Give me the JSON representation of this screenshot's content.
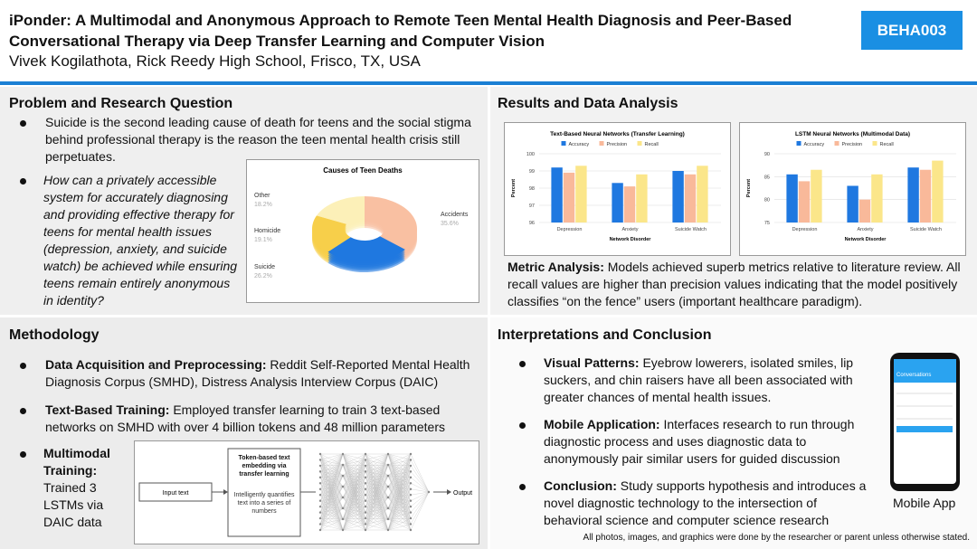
{
  "header": {
    "title": "iPonder: A Multimodal and Anonymous Approach to Remote Teen Mental Health Diagnosis and Peer-Based Conversational Therapy via Deep Transfer Learning and Computer Vision",
    "authors": "Vivek Kogilathota, Rick Reedy High School, Frisco, TX, USA",
    "badge": "BEHA003"
  },
  "problem": {
    "heading": "Problem and Research Question",
    "bullets": [
      "Suicide is the second leading cause of death for teens and the social stigma behind professional therapy is the reason the teen mental health crisis still perpetuates.",
      "How can a privately accessible system for accurately diagnosing and providing effective therapy for teens for mental health issues (depression, anxiety, and suicide watch) be achieved while ensuring teens remain entirely anonymous in identity?"
    ],
    "chart": {
      "type": "pie",
      "title": "Causes of Teen Deaths",
      "categories": [
        "Accidents",
        "Suicide",
        "Homicide",
        "Other"
      ],
      "values": [
        35.6,
        26.2,
        19.1,
        18.2
      ],
      "value_labels": [
        "35.6%",
        "26.2%",
        "19.1%",
        "18.2%"
      ],
      "colors": [
        "#f9c0a2",
        "#1f78e0",
        "#f7cf4a",
        "#fcf0b8"
      ]
    }
  },
  "results": {
    "heading": "Results and Data Analysis",
    "charts": [
      {
        "type": "bar",
        "title": "Text-Based Neural Networks (Transfer Learning)",
        "x_label": "Network Disorder",
        "y_label": "Percent",
        "categories": [
          "Depression",
          "Anxiety",
          "Suicide Watch"
        ],
        "series": [
          {
            "name": "Accuracy",
            "color": "#1f78e0",
            "values": [
              99.2,
              98.3,
              99.0
            ]
          },
          {
            "name": "Precision",
            "color": "#f9b99a",
            "values": [
              98.9,
              98.1,
              98.8
            ]
          },
          {
            "name": "Recall",
            "color": "#fbe68a",
            "values": [
              99.3,
              98.8,
              99.3
            ]
          }
        ],
        "ylim": [
          96,
          100
        ],
        "yticks": [
          96,
          97,
          98,
          99,
          100
        ],
        "grid": true
      },
      {
        "type": "bar",
        "title": "LSTM Neural Networks (Multimodal Data)",
        "x_label": "Network Disorder",
        "y_label": "Percent",
        "categories": [
          "Depression",
          "Anxiety",
          "Suicide Watch"
        ],
        "series": [
          {
            "name": "Accuracy",
            "color": "#1f78e0",
            "values": [
              85.5,
              83.0,
              87.0
            ]
          },
          {
            "name": "Precision",
            "color": "#f9b99a",
            "values": [
              84.0,
              80.0,
              86.5
            ]
          },
          {
            "name": "Recall",
            "color": "#fbe68a",
            "values": [
              86.5,
              85.5,
              88.5
            ]
          }
        ],
        "ylim": [
          75,
          90
        ],
        "yticks": [
          75,
          80,
          85,
          90
        ],
        "grid": true
      }
    ],
    "metric_label": "Metric Analysis:",
    "metric_text": "Models achieved superb metrics relative to literature review. All recall values are higher than precision values indicating that the model positively classifies “on the fence” users (important healthcare paradigm)."
  },
  "methodology": {
    "heading": "Methodology",
    "bullets": [
      {
        "label": "Data Acquisition and Preprocessing:",
        "text": "Reddit Self-Reported Mental Health Diagnosis Corpus (SMHD), Distress Analysis Interview Corpus (DAIC)"
      },
      {
        "label": "Text-Based Training:",
        "text": "Employed transfer learning to train 3 text-based networks on SMHD with over 4 billion tokens and 48 million parameters"
      },
      {
        "label": "Multimodal Training:",
        "text": "Trained 3 LSTMs via DAIC data"
      }
    ],
    "diagram": {
      "input": "Input text",
      "embedding": "Token-based text embedding via transfer learning",
      "embedding_note": "Intelligently quantifies text into a series of numbers",
      "output": "Output"
    }
  },
  "interpretations": {
    "heading": "Interpretations and Conclusion",
    "bullets": [
      {
        "label": "Visual Patterns:",
        "text": "Eyebrow lowerers, isolated smiles, lip suckers, and chin raisers have all been associated with greater chances of mental health issues."
      },
      {
        "label": "Mobile Application:",
        "text": "Interfaces research to run through diagnostic process and uses diagnostic data to anonymously pair similar users for guided discussion"
      },
      {
        "label": "Conclusion:",
        "text": "Study supports hypothesis and introduces a novel diagnostic technology to the intersection of behavioral science and computer science research"
      }
    ],
    "app_screen_title": "Conversations",
    "app_caption": "Mobile App"
  },
  "footer": "All photos, images, and graphics were done by the researcher or parent unless otherwise stated."
}
